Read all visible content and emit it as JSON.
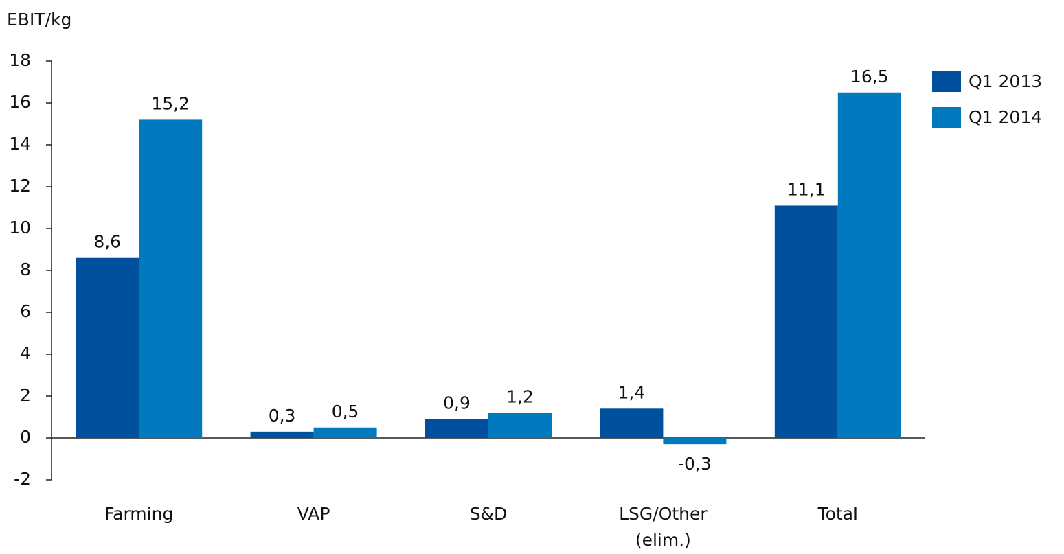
{
  "chart_data": {
    "type": "bar",
    "y_axis_label": "EBIT/kg",
    "categories": [
      "Farming",
      "VAP",
      "S&D",
      "LSG/Other\n(elim.)",
      "Total"
    ],
    "series": [
      {
        "name": "Q1 2013",
        "color": "#00509e",
        "values": [
          8.6,
          0.3,
          0.9,
          1.4,
          11.1
        ],
        "value_labels": [
          "8,6",
          "0,3",
          "0,9",
          "1,4",
          "11,1"
        ]
      },
      {
        "name": "Q1 2014",
        "color": "#0079bf",
        "values": [
          15.2,
          0.5,
          1.2,
          -0.3,
          16.5
        ],
        "value_labels": [
          "15,2",
          "0,5",
          "1,2",
          "-0,3",
          "16,5"
        ]
      }
    ],
    "ylim": [
      -2,
      18
    ],
    "yticks": [
      -2,
      0,
      2,
      4,
      6,
      8,
      10,
      12,
      14,
      16,
      18
    ],
    "grid": false,
    "legend": "top-right"
  }
}
